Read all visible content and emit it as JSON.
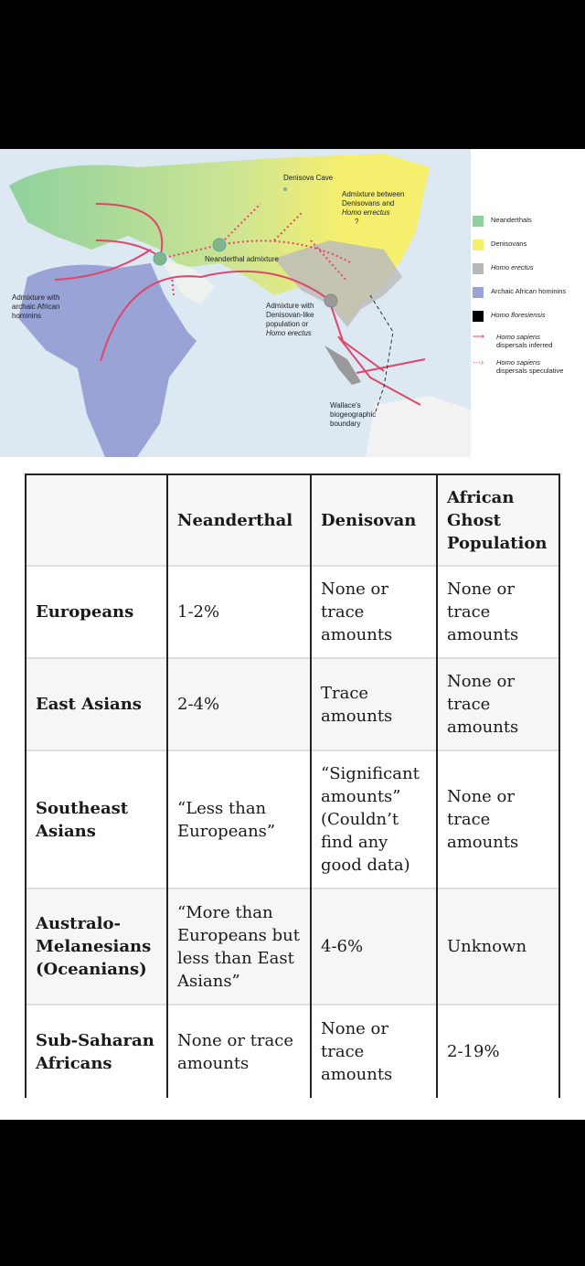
{
  "map": {
    "labels": {
      "denisova_cave": "Denisova Cave",
      "admixture_deni_erectus_1": "Admixture between",
      "admixture_deni_erectus_2": "Denisovans and",
      "admixture_deni_erectus_3": "Homo errectus",
      "admixture_deni_erectus_q": "?",
      "neanderthal_admixture": "Neanderthal admixture",
      "african_admixture_1": "Admixture with",
      "african_admixture_2": "archaic African",
      "african_admixture_3": "hominins",
      "denisovan_like_1": "Admixture with",
      "denisovan_like_2": "Denisovan-like",
      "denisovan_like_3": "population or",
      "denisovan_like_4": "Homo erectus",
      "wallace_1": "Wallace's",
      "wallace_2": "biogeographic",
      "wallace_3": "boundary"
    },
    "legend": [
      {
        "label": "Neanderthals",
        "color": "#8fd19e"
      },
      {
        "label": "Denisovans",
        "color": "#f6ef6e"
      },
      {
        "label": "Homo erectus",
        "color": "#b8b8b8"
      },
      {
        "label": "Archaic African hominins",
        "color": "#9aa3d6"
      },
      {
        "label": "Homo floresiensis",
        "color": "#000000"
      },
      {
        "label1": "Homo sapiens",
        "label2": "dispersals inferred",
        "color": "#e0456a"
      },
      {
        "label1": "Homo sapiens",
        "label2": "dispersals speculative",
        "color": "#e0456a"
      }
    ]
  },
  "table": {
    "headers": [
      "",
      "Neanderthal",
      "Denisovan",
      "African Ghost Population"
    ],
    "rows": [
      {
        "group": "Europeans",
        "neanderthal": "1-2%",
        "denisovan": "None or trace amounts",
        "african_ghost": "None or trace amounts"
      },
      {
        "group": "East Asians",
        "neanderthal": "2-4%",
        "denisovan": "Trace amounts",
        "african_ghost": "None or trace amounts"
      },
      {
        "group": "Southeast Asians",
        "neanderthal": "“Less than Europeans”",
        "denisovan": "“Significant amounts” (Couldn’t find any good data)",
        "african_ghost": "None or trace amounts"
      },
      {
        "group": "Australo-Melanesians (Oceanians)",
        "neanderthal": "“More than Europeans but less than East Asians”",
        "denisovan": "4-6%",
        "african_ghost": "Unknown"
      },
      {
        "group": "Sub-Saharan Africans",
        "neanderthal": "None or trace amounts",
        "denisovan": "None or trace amounts",
        "african_ghost": "2-19%"
      }
    ]
  }
}
